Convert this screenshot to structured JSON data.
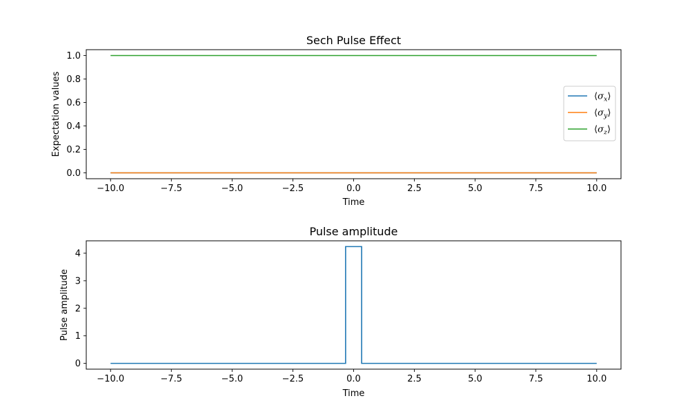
{
  "chart_data": [
    {
      "type": "line",
      "title": "Sech Pulse Effect",
      "xlabel": "Time",
      "ylabel": "Expectation values",
      "xlim": [
        -11.0,
        11.0
      ],
      "ylim": [
        -0.05,
        1.05
      ],
      "xticks": [
        -10.0,
        -7.5,
        -5.0,
        -2.5,
        0.0,
        2.5,
        5.0,
        7.5,
        10.0
      ],
      "xtick_labels": [
        "−10.0",
        "−7.5",
        "−5.0",
        "−2.5",
        "0.0",
        "2.5",
        "5.0",
        "7.5",
        "10.0"
      ],
      "yticks": [
        0.0,
        0.2,
        0.4,
        0.6,
        0.8,
        1.0
      ],
      "ytick_labels": [
        "0.0",
        "0.2",
        "0.4",
        "0.6",
        "0.8",
        "1.0"
      ],
      "grid": false,
      "legend": "center-right",
      "series": [
        {
          "name": "⟨σx⟩",
          "symbol": "σ",
          "sub": "x",
          "color": "#1f77b4",
          "x": [
            -10,
            10
          ],
          "y": [
            0,
            0
          ]
        },
        {
          "name": "⟨σy⟩",
          "symbol": "σ",
          "sub": "y",
          "color": "#ff7f0e",
          "x": [
            -10,
            10
          ],
          "y": [
            0,
            0
          ]
        },
        {
          "name": "⟨σz⟩",
          "symbol": "σ",
          "sub": "z",
          "color": "#2ca02c",
          "x": [
            -10,
            10
          ],
          "y": [
            1,
            1
          ]
        }
      ]
    },
    {
      "type": "line",
      "title": "Pulse amplitude",
      "xlabel": "Time",
      "ylabel": "Pulse amplitude",
      "xlim": [
        -11.0,
        11.0
      ],
      "ylim": [
        -0.21,
        4.45
      ],
      "xticks": [
        -10.0,
        -7.5,
        -5.0,
        -2.5,
        0.0,
        2.5,
        5.0,
        7.5,
        10.0
      ],
      "xtick_labels": [
        "−10.0",
        "−7.5",
        "−5.0",
        "−2.5",
        "0.0",
        "2.5",
        "5.0",
        "7.5",
        "10.0"
      ],
      "yticks": [
        0,
        1,
        2,
        3,
        4
      ],
      "ytick_labels": [
        "0",
        "1",
        "2",
        "3",
        "4"
      ],
      "grid": false,
      "series": [
        {
          "color": "#1f77b4",
          "x": [
            -10,
            -0.33,
            -0.33,
            0.33,
            0.33,
            10
          ],
          "y": [
            0,
            0,
            4.24,
            4.24,
            0,
            0
          ]
        }
      ]
    }
  ]
}
